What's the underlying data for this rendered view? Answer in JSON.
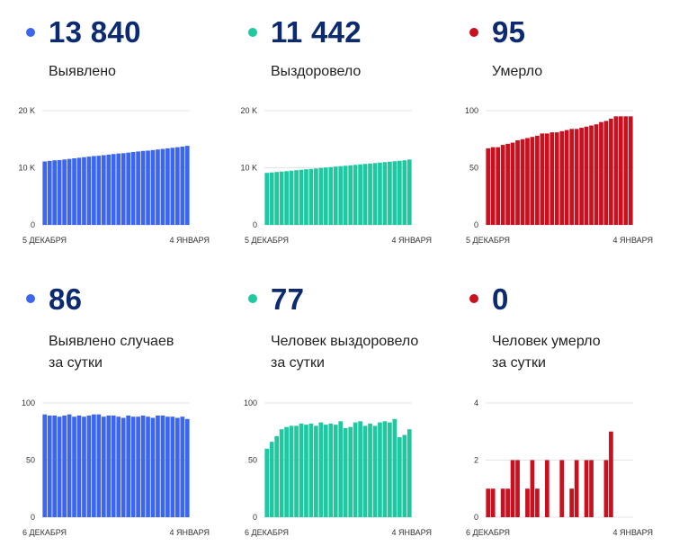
{
  "panels": [
    {
      "value": "13 840",
      "caption_line1": "Выявлено",
      "caption_line2": "",
      "color": "#3c66ef",
      "chart_data": {
        "type": "bar",
        "title": "",
        "ylim": [
          0,
          20000
        ],
        "yticks": [
          0,
          10000,
          20000
        ],
        "ytick_labels": [
          "0",
          "10 K",
          "20 K"
        ],
        "x_start_label": "5 ДЕКАБРЯ",
        "x_end_label": "4 ЯНВАРЯ",
        "values": [
          11100,
          11200,
          11300,
          11350,
          11450,
          11550,
          11650,
          11750,
          11850,
          11950,
          12050,
          12100,
          12200,
          12300,
          12400,
          12500,
          12550,
          12650,
          12750,
          12850,
          12950,
          13000,
          13100,
          13200,
          13300,
          13400,
          13500,
          13600,
          13700,
          13840
        ],
        "grid": true
      }
    },
    {
      "value": "11 442",
      "caption_line1": "Выздоровело",
      "caption_line2": "",
      "color": "#1fc8a1",
      "chart_data": {
        "type": "bar",
        "title": "",
        "ylim": [
          0,
          20000
        ],
        "yticks": [
          0,
          10000,
          20000
        ],
        "ytick_labels": [
          "0",
          "10 K",
          "20 K"
        ],
        "x_start_label": "5 ДЕКАБРЯ",
        "x_end_label": "4 ЯНВАРЯ",
        "values": [
          9100,
          9180,
          9260,
          9330,
          9410,
          9490,
          9570,
          9650,
          9730,
          9800,
          9880,
          9960,
          10040,
          10120,
          10200,
          10280,
          10350,
          10430,
          10510,
          10590,
          10670,
          10740,
          10820,
          10900,
          10980,
          11060,
          11140,
          11220,
          11300,
          11442
        ],
        "grid": true
      }
    },
    {
      "value": "95",
      "caption_line1": "Умерло",
      "caption_line2": "",
      "color": "#c8101f",
      "chart_data": {
        "type": "bar",
        "title": "",
        "ylim": [
          0,
          100
        ],
        "yticks": [
          0,
          50,
          100
        ],
        "ytick_labels": [
          "0",
          "50",
          "100"
        ],
        "x_start_label": "5 ДЕКАБРЯ",
        "x_end_label": "4 ЯНВАРЯ",
        "values": [
          67,
          68,
          68,
          70,
          71,
          72,
          74,
          75,
          76,
          77,
          78,
          80,
          80,
          81,
          81,
          82,
          83,
          84,
          84,
          85,
          86,
          87,
          88,
          90,
          91,
          93,
          95,
          95,
          95,
          95
        ],
        "grid": true
      }
    },
    {
      "value": "86",
      "caption_line1": "Выявлено случаев",
      "caption_line2": "за сутки",
      "color": "#3c66ef",
      "chart_data": {
        "type": "bar",
        "title": "",
        "ylim": [
          0,
          100
        ],
        "yticks": [
          0,
          50,
          100
        ],
        "ytick_labels": [
          "0",
          "50",
          "100"
        ],
        "x_start_label": "6 ДЕКАБРЯ",
        "x_end_label": "4 ЯНВАРЯ",
        "values": [
          90,
          89,
          89,
          88,
          89,
          90,
          88,
          89,
          88,
          89,
          90,
          90,
          88,
          89,
          89,
          88,
          87,
          89,
          88,
          88,
          89,
          88,
          87,
          89,
          89,
          88,
          88,
          87,
          88,
          86
        ],
        "grid": true
      }
    },
    {
      "value": "77",
      "caption_line1": "Человек выздоровело",
      "caption_line2": "за сутки",
      "color": "#1fc8a1",
      "chart_data": {
        "type": "bar",
        "title": "",
        "ylim": [
          0,
          100
        ],
        "yticks": [
          0,
          50,
          100
        ],
        "ytick_labels": [
          "0",
          "50",
          "100"
        ],
        "x_start_label": "6 ДЕКАБРЯ",
        "x_end_label": "4 ЯНВАРЯ",
        "values": [
          60,
          66,
          71,
          77,
          79,
          80,
          80,
          82,
          81,
          82,
          80,
          83,
          81,
          82,
          81,
          84,
          78,
          79,
          83,
          84,
          80,
          82,
          80,
          83,
          84,
          83,
          86,
          70,
          72,
          77
        ],
        "grid": true
      }
    },
    {
      "value": "0",
      "caption_line1": "Человек умерло",
      "caption_line2": "за сутки",
      "color": "#c8101f",
      "chart_data": {
        "type": "bar",
        "title": "",
        "ylim": [
          0,
          4
        ],
        "yticks": [
          0,
          2,
          4
        ],
        "ytick_labels": [
          "0",
          "2",
          "4"
        ],
        "x_start_label": "6 ДЕКАБРЯ",
        "x_end_label": "4 ЯНВАРЯ",
        "values": [
          1,
          1,
          0,
          1,
          1,
          2,
          2,
          0,
          1,
          2,
          1,
          0,
          2,
          0,
          0,
          2,
          0,
          1,
          2,
          0,
          2,
          2,
          0,
          0,
          2,
          3,
          0,
          0,
          0,
          0
        ],
        "grid": true
      }
    }
  ]
}
